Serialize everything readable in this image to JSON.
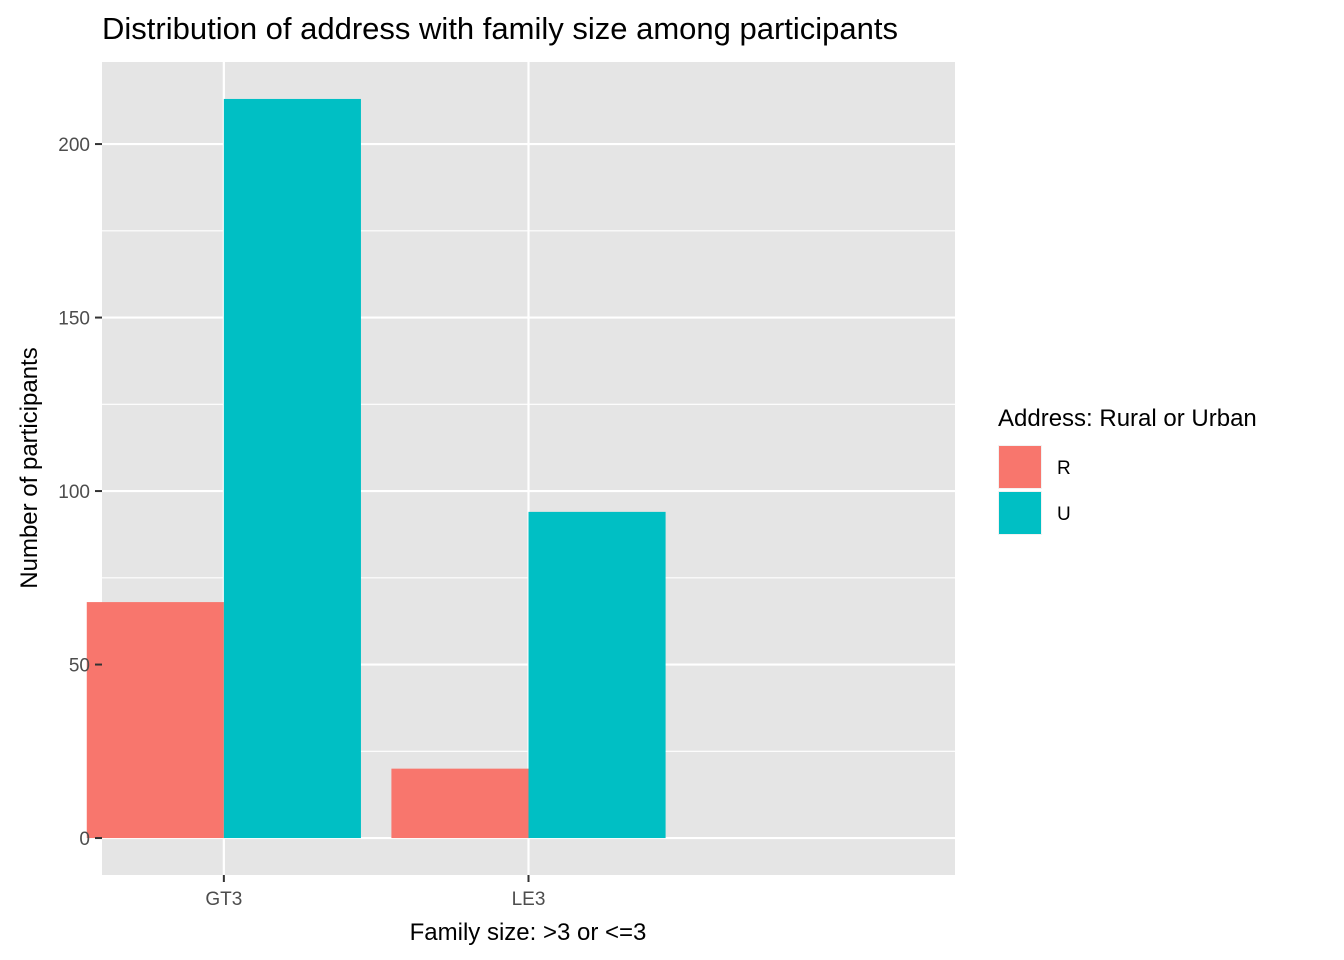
{
  "chart_data": {
    "type": "bar",
    "title": "Distribution of address with family size among participants",
    "xlabel": "Family size: >3 or <=3",
    "ylabel": "Number of participants",
    "categories": [
      "GT3",
      "LE3"
    ],
    "series": [
      {
        "name": "R",
        "values": [
          68,
          20
        ],
        "color": "#F8766D"
      },
      {
        "name": "U",
        "values": [
          213,
          94
        ],
        "color": "#00BFC4"
      }
    ],
    "ylim": [
      -10.65,
      223.65
    ],
    "yticks": [
      0,
      50,
      100,
      150,
      200
    ],
    "grid": true,
    "legend": {
      "title": "Address: Rural or Urban",
      "placement": "right"
    },
    "colors": {
      "panel_background": "#E5E5E5",
      "grid_line": "#FFFFFF",
      "tick_text": "#4D4D4D",
      "tick_mark": "#333333"
    }
  }
}
